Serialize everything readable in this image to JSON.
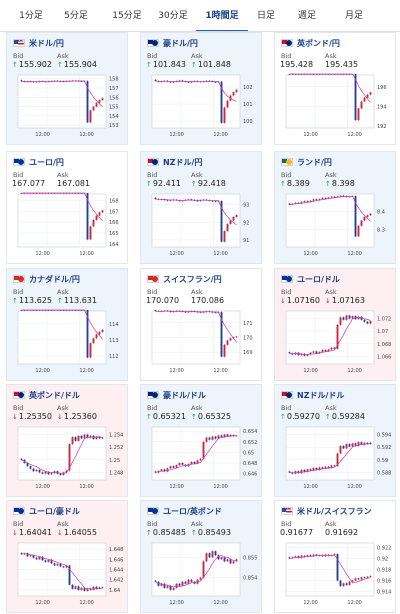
{
  "tabs": [
    {
      "label": "1分足",
      "active": false
    },
    {
      "label": "5分足",
      "active": false
    },
    {
      "label": "15分足",
      "active": false
    },
    {
      "label": "30分足",
      "active": false
    },
    {
      "label": "1時間足",
      "active": true
    },
    {
      "label": "日足",
      "active": false
    },
    {
      "label": "週足",
      "active": false
    },
    {
      "label": "月足",
      "active": false
    }
  ],
  "labels": {
    "bid": "Bid",
    "ask": "Ask"
  },
  "colors": {
    "up_candle": "#d0243a",
    "down_candle": "#1f3f9a",
    "ma": "#c837c0",
    "up_arrow": "#2a9a4a",
    "down_arrow": "#d0243a",
    "accent": "#1a3e8c"
  },
  "cards": [
    {
      "pair": "米ドル/円",
      "bid": "155.902",
      "ask": "155.904",
      "bid_dir": "up",
      "ask_dir": "up",
      "trend": "up",
      "flag": "us",
      "chart": {
        "x_label": "12:00",
        "y_ticks": [
          "158",
          "157",
          "156",
          "155",
          "154",
          "153"
        ],
        "y_range": [
          152.7,
          158.4
        ]
      }
    },
    {
      "pair": "豪ドル/円",
      "bid": "101.843",
      "ask": "101.848",
      "bid_dir": "up",
      "ask_dir": "up",
      "trend": "up",
      "flag": "au",
      "chart": {
        "x_label": "12:00",
        "y_ticks": [
          "102",
          "101",
          "100"
        ],
        "y_range": [
          99.6,
          102.7
        ]
      }
    },
    {
      "pair": "英ポンド/円",
      "bid": "195.428",
      "ask": "195.435",
      "bid_dir": "none",
      "ask_dir": "none",
      "trend": "flat",
      "flag": "gb",
      "chart": {
        "x_label": "12:00",
        "y_ticks": [
          "196",
          "194",
          "192"
        ],
        "y_range": [
          191.8,
          197.2
        ]
      }
    },
    {
      "pair": "ユーロ/円",
      "bid": "167.077",
      "ask": "167.081",
      "bid_dir": "none",
      "ask_dir": "none",
      "trend": "flat",
      "flag": "eu",
      "chart": {
        "x_label": "12:00",
        "y_ticks": [
          "168",
          "167",
          "166",
          "165",
          "164"
        ],
        "y_range": [
          163.7,
          168.6
        ]
      }
    },
    {
      "pair": "NZドル/円",
      "bid": "92.411",
      "ask": "92.418",
      "bid_dir": "up",
      "ask_dir": "up",
      "trend": "up",
      "flag": "nz",
      "chart": {
        "x_label": "12:00",
        "y_ticks": [
          "93",
          "92",
          "91"
        ],
        "y_range": [
          90.6,
          93.6
        ]
      }
    },
    {
      "pair": "ランド/円",
      "bid": "8.389",
      "ask": "8.398",
      "bid_dir": "up",
      "ask_dir": "up",
      "trend": "up",
      "flag": "za",
      "chart": {
        "x_label": "12:00",
        "y_ticks": [
          "8.4",
          "8.3"
        ],
        "y_range": [
          8.2,
          8.5
        ]
      }
    },
    {
      "pair": "カナダドル/円",
      "bid": "113.625",
      "ask": "113.631",
      "bid_dir": "up",
      "ask_dir": "up",
      "trend": "up",
      "flag": "ca",
      "chart": {
        "x_label": "12:00",
        "y_ticks": [
          "114",
          "113",
          "112"
        ],
        "y_range": [
          111.5,
          114.8
        ]
      }
    },
    {
      "pair": "スイスフラン/円",
      "bid": "170.070",
      "ask": "170.086",
      "bid_dir": "none",
      "ask_dir": "none",
      "trend": "flat",
      "flag": "ch",
      "chart": {
        "x_label": "12:00",
        "y_ticks": [
          "171",
          "170",
          "169"
        ],
        "y_range": [
          168.2,
          171.8
        ]
      }
    },
    {
      "pair": "ユーロ/ドル",
      "bid": "1.07160",
      "ask": "1.07163",
      "bid_dir": "down",
      "ask_dir": "down",
      "trend": "down",
      "flag": "eu",
      "chart": {
        "x_label": "12:00",
        "y_ticks": [
          "1.072",
          "1.07",
          "1.068",
          "1.066"
        ],
        "y_range": [
          1.0648,
          1.0732
        ]
      }
    },
    {
      "pair": "英ポンド/ドル",
      "bid": "1.25350",
      "ask": "1.25360",
      "bid_dir": "down",
      "ask_dir": "down",
      "trend": "down",
      "flag": "gb",
      "chart": {
        "x_label": "12:00",
        "y_ticks": [
          "1.254",
          "1.252",
          "1.25",
          "1.248"
        ],
        "y_range": [
          1.2468,
          1.2552
        ]
      }
    },
    {
      "pair": "豪ドル/ドル",
      "bid": "0.65321",
      "ask": "0.65325",
      "bid_dir": "up",
      "ask_dir": "up",
      "trend": "up",
      "flag": "au",
      "chart": {
        "x_label": "12:00",
        "y_ticks": [
          "0.654",
          "0.652",
          "0.65",
          "0.648",
          "0.646"
        ],
        "y_range": [
          0.6448,
          0.6548
        ]
      }
    },
    {
      "pair": "NZドル/ドル",
      "bid": "0.59270",
      "ask": "0.59284",
      "bid_dir": "up",
      "ask_dir": "up",
      "trend": "up",
      "flag": "nz",
      "chart": {
        "x_label": "12:00",
        "y_ticks": [
          "0.594",
          "0.592",
          "0.59",
          "0.588"
        ],
        "y_range": [
          0.5868,
          0.5952
        ]
      }
    },
    {
      "pair": "ユーロ/豪ドル",
      "bid": "1.64041",
      "ask": "1.64055",
      "bid_dir": "down",
      "ask_dir": "down",
      "trend": "down",
      "flag": "eu",
      "chart": {
        "x_label": "12:00",
        "y_ticks": [
          "1.648",
          "1.646",
          "1.644",
          "1.642",
          "1.64"
        ],
        "y_range": [
          1.6388,
          1.6492
        ]
      }
    },
    {
      "pair": "ユーロ/英ポンド",
      "bid": "0.85485",
      "ask": "0.85493",
      "bid_dir": "up",
      "ask_dir": "up",
      "trend": "up",
      "flag": "eu",
      "chart": {
        "x_label": "12:00",
        "y_ticks": [
          "0.855",
          "0.854"
        ],
        "y_range": [
          0.8531,
          0.8557
        ]
      }
    },
    {
      "pair": "米ドル/スイスフラン",
      "bid": "0.91677",
      "ask": "0.91692",
      "bid_dir": "none",
      "ask_dir": "none",
      "trend": "flat",
      "flag": "us",
      "chart": {
        "x_label": "12:00",
        "y_ticks": [
          "0.922",
          "0.92",
          "0.918",
          "0.916",
          "0.914"
        ],
        "y_range": [
          0.9132,
          0.9228
        ]
      }
    }
  ],
  "chart_data": [
    {
      "type": "candlestick",
      "title": "米ドル/円",
      "xlabel": "12:00",
      "ylim": [
        152.7,
        158.4
      ],
      "closes": [
        157.72,
        157.68,
        157.71,
        157.7,
        157.66,
        157.69,
        157.73,
        157.7,
        157.68,
        157.72,
        157.75,
        157.78,
        157.74,
        157.72,
        157.7,
        157.73,
        157.76,
        157.8,
        157.78,
        157.75,
        157.72,
        157.74,
        153.3,
        154.6,
        155.0,
        155.4,
        155.7,
        155.9
      ]
    },
    {
      "type": "candlestick",
      "title": "豪ドル/円",
      "xlabel": "12:00",
      "ylim": [
        99.6,
        102.7
      ],
      "closes": [
        102.35,
        102.3,
        102.33,
        102.36,
        102.31,
        102.28,
        102.3,
        102.34,
        102.38,
        102.33,
        102.3,
        102.28,
        102.31,
        102.35,
        102.32,
        102.3,
        102.33,
        102.36,
        102.34,
        102.3,
        102.28,
        102.31,
        99.9,
        100.8,
        101.2,
        101.5,
        101.7,
        101.84
      ]
    },
    {
      "type": "candlestick",
      "title": "英ポンド/円",
      "xlabel": "12:00",
      "ylim": [
        191.8,
        197.2
      ],
      "closes": [
        197.7,
        197.65,
        197.6,
        197.64,
        197.58,
        197.55,
        197.6,
        197.66,
        197.62,
        197.58,
        197.55,
        197.6,
        197.65,
        197.62,
        197.57,
        197.55,
        197.58,
        197.62,
        197.6,
        197.56,
        197.52,
        197.55,
        192.6,
        193.8,
        194.5,
        194.9,
        195.2,
        195.43
      ]
    },
    {
      "type": "candlestick",
      "title": "ユーロ/円",
      "xlabel": "12:00",
      "ylim": [
        163.7,
        168.6
      ],
      "closes": [
        168.85,
        168.8,
        168.83,
        168.86,
        168.82,
        168.78,
        168.8,
        168.84,
        168.87,
        168.83,
        168.8,
        168.78,
        168.82,
        168.85,
        168.82,
        168.78,
        168.8,
        168.84,
        168.82,
        168.79,
        168.76,
        168.78,
        164.4,
        165.6,
        166.2,
        166.6,
        166.9,
        167.08
      ]
    },
    {
      "type": "candlestick",
      "title": "NZドル/円",
      "xlabel": "12:00",
      "ylim": [
        90.6,
        93.6
      ],
      "closes": [
        93.32,
        93.28,
        93.3,
        93.26,
        93.22,
        93.25,
        93.28,
        93.24,
        93.2,
        93.23,
        93.27,
        93.3,
        93.26,
        93.23,
        93.2,
        93.24,
        93.28,
        93.25,
        93.22,
        93.19,
        93.17,
        93.2,
        90.9,
        91.5,
        91.9,
        92.1,
        92.3,
        92.41
      ]
    },
    {
      "type": "candlestick",
      "title": "ランド/円",
      "xlabel": "12:00",
      "ylim": [
        8.2,
        8.5
      ],
      "closes": [
        8.44,
        8.445,
        8.45,
        8.448,
        8.455,
        8.46,
        8.458,
        8.462,
        8.47,
        8.468,
        8.472,
        8.478,
        8.475,
        8.48,
        8.485,
        8.482,
        8.486,
        8.49,
        8.488,
        8.484,
        8.486,
        8.488,
        8.26,
        8.32,
        8.35,
        8.37,
        8.38,
        8.389
      ]
    },
    {
      "type": "candlestick",
      "title": "カナダドル/円",
      "xlabel": "12:00",
      "ylim": [
        111.5,
        114.8
      ],
      "closes": [
        115.0,
        114.96,
        114.99,
        115.02,
        114.97,
        114.94,
        114.97,
        115.01,
        114.98,
        114.94,
        114.92,
        114.95,
        114.99,
        114.96,
        114.93,
        114.9,
        114.93,
        114.97,
        114.95,
        114.91,
        114.89,
        114.92,
        111.9,
        112.8,
        113.1,
        113.35,
        113.5,
        113.63
      ]
    },
    {
      "type": "candlestick",
      "title": "スイスフラン/円",
      "xlabel": "12:00",
      "ylim": [
        168.2,
        171.8
      ],
      "closes": [
        171.8,
        171.76,
        171.79,
        171.82,
        171.78,
        171.74,
        171.77,
        171.81,
        171.79,
        171.75,
        171.72,
        171.75,
        171.79,
        171.76,
        171.73,
        171.7,
        171.74,
        171.78,
        171.75,
        171.71,
        171.69,
        171.72,
        168.7,
        169.5,
        169.8,
        169.95,
        170.02,
        170.07
      ]
    },
    {
      "type": "candlestick",
      "title": "ユーロ/ドル",
      "xlabel": "12:00",
      "ylim": [
        1.0648,
        1.0732
      ],
      "closes": [
        1.0665,
        1.0663,
        1.0666,
        1.0662,
        1.0664,
        1.0661,
        1.0663,
        1.0666,
        1.0668,
        1.0665,
        1.0667,
        1.067,
        1.0668,
        1.0671,
        1.0674,
        1.0672,
        1.071,
        1.0722,
        1.0718,
        1.0725,
        1.072,
        1.0724,
        1.0719,
        1.0723,
        1.0718,
        1.0715,
        1.0712,
        1.0716
      ]
    },
    {
      "type": "candlestick",
      "title": "英ポンド/ドル",
      "xlabel": "12:00",
      "ylim": [
        1.2468,
        1.2552
      ],
      "closes": [
        1.25,
        1.2495,
        1.249,
        1.2486,
        1.2482,
        1.2484,
        1.248,
        1.2478,
        1.2481,
        1.2477,
        1.2479,
        1.2482,
        1.2478,
        1.2476,
        1.248,
        1.2483,
        1.2525,
        1.2536,
        1.253,
        1.2538,
        1.2534,
        1.254,
        1.2535,
        1.2538,
        1.2533,
        1.2537,
        1.2534,
        1.2535
      ]
    },
    {
      "type": "candlestick",
      "title": "豪ドル/ドル",
      "xlabel": "12:00",
      "ylim": [
        0.6448,
        0.6548
      ],
      "closes": [
        0.6462,
        0.6465,
        0.6468,
        0.6464,
        0.647,
        0.6474,
        0.6471,
        0.6476,
        0.648,
        0.6477,
        0.6474,
        0.6478,
        0.6482,
        0.6479,
        0.6485,
        0.6488,
        0.652,
        0.6528,
        0.6524,
        0.653,
        0.6526,
        0.6532,
        0.6529,
        0.6534,
        0.653,
        0.6533,
        0.6531,
        0.6532
      ]
    },
    {
      "type": "candlestick",
      "title": "NZドル/ドル",
      "xlabel": "12:00",
      "ylim": [
        0.5868,
        0.5952
      ],
      "closes": [
        0.588,
        0.5878,
        0.5882,
        0.5879,
        0.5884,
        0.5881,
        0.5885,
        0.5883,
        0.5887,
        0.5884,
        0.5888,
        0.5886,
        0.5889,
        0.5887,
        0.5891,
        0.589,
        0.591,
        0.5922,
        0.5918,
        0.5925,
        0.5921,
        0.5926,
        0.5922,
        0.5928,
        0.5924,
        0.5927,
        0.5925,
        0.5927
      ]
    },
    {
      "type": "candlestick",
      "title": "ユーロ/豪ドル",
      "xlabel": "12:00",
      "ylim": [
        1.6388,
        1.6492
      ],
      "closes": [
        1.647,
        1.6472,
        1.6466,
        1.6468,
        1.6463,
        1.646,
        1.6465,
        1.6458,
        1.6455,
        1.6459,
        1.6452,
        1.6448,
        1.6451,
        1.6446,
        1.6444,
        1.6448,
        1.641,
        1.6402,
        1.6407,
        1.64,
        1.6404,
        1.6398,
        1.6403,
        1.64,
        1.6406,
        1.6402,
        1.6405,
        1.6404
      ]
    },
    {
      "type": "candlestick",
      "title": "ユーロ/英ポンド",
      "xlabel": "12:00",
      "ylim": [
        0.8531,
        0.8557
      ],
      "closes": [
        0.8538,
        0.8536,
        0.8537,
        0.8535,
        0.8536,
        0.8534,
        0.8535,
        0.8537,
        0.8536,
        0.8538,
        0.8537,
        0.8539,
        0.8538,
        0.8537,
        0.8539,
        0.854,
        0.8548,
        0.8552,
        0.855,
        0.8553,
        0.8551,
        0.8549,
        0.855,
        0.8548,
        0.8549,
        0.8547,
        0.8548,
        0.8549
      ]
    },
    {
      "type": "candlestick",
      "title": "米ドル/スイスフラン",
      "xlabel": "12:00",
      "ylim": [
        0.9132,
        0.9228
      ],
      "closes": [
        0.92,
        0.9202,
        0.9204,
        0.9201,
        0.9205,
        0.9203,
        0.9206,
        0.9204,
        0.9207,
        0.9205,
        0.9206,
        0.9204,
        0.9207,
        0.9205,
        0.9206,
        0.9208,
        0.916,
        0.915,
        0.9155,
        0.9152,
        0.9158,
        0.916,
        0.9164,
        0.9162,
        0.9166,
        0.9165,
        0.9167,
        0.9168
      ]
    }
  ]
}
